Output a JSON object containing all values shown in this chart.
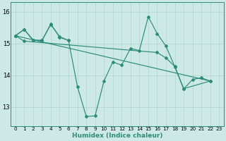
{
  "xlabel": "Humidex (Indice chaleur)",
  "xlim": [
    -0.5,
    23.5
  ],
  "ylim": [
    12.4,
    16.3
  ],
  "yticks": [
    13,
    14,
    15,
    16
  ],
  "xtick_labels": [
    "0",
    "1",
    "2",
    "3",
    "4",
    "5",
    "6",
    "7",
    "8",
    "9",
    "10",
    "11",
    "12",
    "13",
    "14",
    "15",
    "16",
    "17",
    "18",
    "19",
    "20",
    "21",
    "22",
    "23"
  ],
  "bg_color": "#cce9e5",
  "line_color": "#2d8b7a",
  "grid_color": "#aed4cf",
  "series1_x": [
    0,
    1,
    2,
    3,
    4,
    5,
    6,
    7,
    8,
    9,
    10,
    11,
    12,
    13,
    14,
    15,
    16,
    17,
    18,
    19,
    20,
    21,
    22
  ],
  "series1_y": [
    15.25,
    15.45,
    15.1,
    15.1,
    15.62,
    15.2,
    15.1,
    13.65,
    12.7,
    12.72,
    13.82,
    14.42,
    14.32,
    14.85,
    14.78,
    15.85,
    15.32,
    14.92,
    14.27,
    13.57,
    13.87,
    13.92,
    13.82
  ],
  "series2_x": [
    0,
    1,
    2,
    3,
    4,
    5,
    6
  ],
  "series2_y": [
    15.25,
    15.45,
    15.12,
    15.1,
    15.6,
    15.22,
    15.1
  ],
  "series3_x": [
    0,
    1,
    16,
    17,
    18,
    19,
    22
  ],
  "series3_y": [
    15.25,
    15.08,
    14.72,
    14.55,
    14.28,
    13.58,
    13.82
  ],
  "series4_x": [
    0,
    22
  ],
  "series4_y": [
    15.25,
    13.82
  ],
  "marker": "D",
  "markersize": 2.0,
  "linewidth": 0.85
}
